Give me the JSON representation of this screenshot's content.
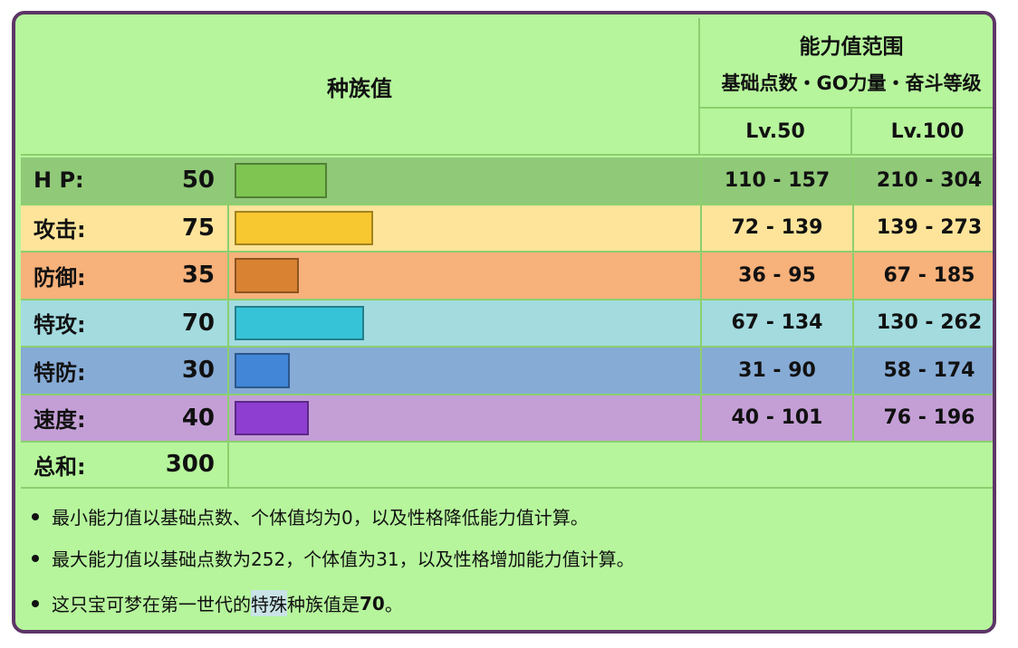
{
  "header": {
    "base_stats": "种族值",
    "range_title": "能力值范围",
    "range_subtitle": "基础点数・GO力量・奋斗等级",
    "lv50": "Lv.50",
    "lv100": "Lv.100"
  },
  "rows": [
    {
      "label": "H P:",
      "value": "50",
      "lv50": "110 - 157",
      "lv100": "210 - 304",
      "fraction": 0.196,
      "row_color": "#90c978",
      "bar_color": "#7ec552"
    },
    {
      "label": "攻击:",
      "value": "75",
      "lv50": "72 - 139",
      "lv100": "139 - 273",
      "fraction": 0.294,
      "row_color": "#fde49a",
      "bar_color": "#f8c830"
    },
    {
      "label": "防御:",
      "value": "35",
      "lv50": "36 - 95",
      "lv100": "67 - 185",
      "fraction": 0.137,
      "row_color": "#f7b17a",
      "bar_color": "#d98232"
    },
    {
      "label": "特攻:",
      "value": "70",
      "lv50": "67 - 134",
      "lv100": "130 - 262",
      "fraction": 0.275,
      "row_color": "#a3dbdf",
      "bar_color": "#36c3d8"
    },
    {
      "label": "特防:",
      "value": "30",
      "lv50": "31 - 90",
      "lv100": "58 - 174",
      "fraction": 0.118,
      "row_color": "#86abd5",
      "bar_color": "#4286d8"
    },
    {
      "label": "速度:",
      "value": "40",
      "lv50": "40 - 101",
      "lv100": "76 - 196",
      "fraction": 0.157,
      "row_color": "#c49fd6",
      "bar_color": "#8e3ed0"
    }
  ],
  "total": {
    "label": "总和:",
    "value": "300"
  },
  "notes": {
    "n1": "最小能力值以基础点数、个体值均为0，以及性格降低能力值计算。",
    "n2": "最大能力值以基础点数为252，个体值为31，以及性格增加能力值计算。",
    "n3_pre": "这只宝可梦在第一世代的",
    "n3_hl": "特殊",
    "n3_post": "种族值是",
    "n3_val": "70",
    "n3_end": "。"
  },
  "colors": {
    "card_bg": "#b6f59c",
    "card_border": "#5d3566",
    "grid_line": "#8ccf6f"
  }
}
